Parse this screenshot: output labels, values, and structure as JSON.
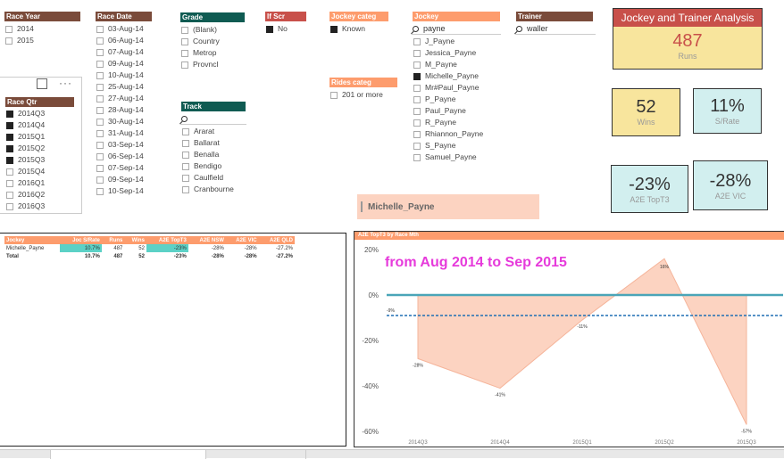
{
  "slicers": {
    "race_year": {
      "title": "Race Year",
      "items": [
        {
          "label": "2014",
          "checked": false
        },
        {
          "label": "2015",
          "checked": false
        }
      ]
    },
    "race_date": {
      "title": "Race Date",
      "items": [
        {
          "label": "03-Aug-14",
          "checked": false
        },
        {
          "label": "06-Aug-14",
          "checked": false
        },
        {
          "label": "07-Aug-14",
          "checked": false
        },
        {
          "label": "09-Aug-14",
          "checked": false
        },
        {
          "label": "10-Aug-14",
          "checked": false
        },
        {
          "label": "25-Aug-14",
          "checked": false
        },
        {
          "label": "27-Aug-14",
          "checked": false
        },
        {
          "label": "28-Aug-14",
          "checked": false
        },
        {
          "label": "30-Aug-14",
          "checked": false
        },
        {
          "label": "31-Aug-14",
          "checked": false
        },
        {
          "label": "03-Sep-14",
          "checked": false
        },
        {
          "label": "06-Sep-14",
          "checked": false
        },
        {
          "label": "07-Sep-14",
          "checked": false
        },
        {
          "label": "09-Sep-14",
          "checked": false
        },
        {
          "label": "10-Sep-14",
          "checked": false
        }
      ]
    },
    "grade": {
      "title": "Grade",
      "items": [
        {
          "label": "(Blank)",
          "checked": false
        },
        {
          "label": "Country",
          "checked": false
        },
        {
          "label": "Metrop",
          "checked": false
        },
        {
          "label": "Provncl",
          "checked": false
        }
      ]
    },
    "if_scr": {
      "title": "If Scr",
      "items": [
        {
          "label": "No",
          "checked": true
        }
      ]
    },
    "jockey_categ": {
      "title": "Jockey categ",
      "items": [
        {
          "label": "Known",
          "checked": true
        }
      ]
    },
    "rides_categ": {
      "title": "Rides categ",
      "items": [
        {
          "label": "201 or more",
          "checked": false
        }
      ]
    },
    "jockey": {
      "title": "Jockey",
      "search": "payne",
      "items": [
        {
          "label": "J_Payne",
          "checked": false
        },
        {
          "label": "Jessica_Payne",
          "checked": false
        },
        {
          "label": "M_Payne",
          "checked": false
        },
        {
          "label": "Michelle_Payne",
          "checked": true
        },
        {
          "label": "Mr#Paul_Payne",
          "checked": false
        },
        {
          "label": "P_Payne",
          "checked": false
        },
        {
          "label": "Paul_Payne",
          "checked": false
        },
        {
          "label": "R_Payne",
          "checked": false
        },
        {
          "label": "Rhiannon_Payne",
          "checked": false
        },
        {
          "label": "S_Payne",
          "checked": false
        },
        {
          "label": "Samuel_Payne",
          "checked": false
        }
      ]
    },
    "trainer": {
      "title": "Trainer",
      "search": "waller"
    },
    "track": {
      "title": "Track",
      "search": "",
      "items": [
        {
          "label": "Ararat",
          "checked": false
        },
        {
          "label": "Ballarat",
          "checked": false
        },
        {
          "label": "Benalla",
          "checked": false
        },
        {
          "label": "Bendigo",
          "checked": false
        },
        {
          "label": "Caulfield",
          "checked": false
        },
        {
          "label": "Cranbourne",
          "checked": false
        }
      ]
    },
    "race_qtr": {
      "title": "Race Qtr",
      "items": [
        {
          "label": "2014Q3",
          "checked": true
        },
        {
          "label": "2014Q4",
          "checked": true
        },
        {
          "label": "2015Q1",
          "checked": true
        },
        {
          "label": "2015Q2",
          "checked": true
        },
        {
          "label": "2015Q3",
          "checked": true
        },
        {
          "label": "2015Q4",
          "checked": false
        },
        {
          "label": "2016Q1",
          "checked": false
        },
        {
          "label": "2016Q2",
          "checked": false
        },
        {
          "label": "2016Q3",
          "checked": false
        }
      ]
    }
  },
  "header": {
    "title": "Jockey and Trainer Analysis"
  },
  "cards": {
    "runs": {
      "value": "487",
      "label": "Runs"
    },
    "wins": {
      "value": "52",
      "label": "Wins"
    },
    "srate": {
      "value": "11%",
      "label": "S/Rate"
    },
    "a2e_top3": {
      "value": "-23%",
      "label": "A2E TopT3"
    },
    "a2e_vic": {
      "value": "-28%",
      "label": "A2E VIC"
    }
  },
  "selected_jockey": "Michelle_Payne",
  "table": {
    "headers": [
      "Jockey",
      "Joc S/Rate",
      "Runs",
      "Wins",
      "A2E TopT3",
      "A2E NSW",
      "A2E VIC",
      "A2E QLD"
    ],
    "rows": [
      [
        "Michelle_Payne",
        "10.7%",
        "487",
        "52",
        "-23%",
        "-28%",
        "-28%",
        "-27.2%"
      ]
    ],
    "total": [
      "Total",
      "10.7%",
      "487",
      "52",
      "-23%",
      "-28%",
      "-28%",
      "-27.2%"
    ]
  },
  "chart_data": {
    "type": "area",
    "title": "A2E TopT3 by Race Mth",
    "annotation": "from Aug 2014 to Sep 2015",
    "categories": [
      "2014Q3",
      "2014Q4",
      "2015Q1",
      "2015Q2",
      "2015Q3"
    ],
    "series": [
      {
        "values": [
          -28,
          -41,
          -11,
          16,
          -57
        ],
        "labels": [
          "-28%",
          "-41%",
          "-11%",
          "16%",
          "-57%"
        ]
      }
    ],
    "reference_line": {
      "value": -9,
      "label": "-9%"
    },
    "ylim": [
      -60,
      20
    ],
    "yticks": [
      "20%",
      "0%",
      "-20%",
      "-40%",
      "-60%"
    ],
    "colors": {
      "area": "#fcd3c1",
      "line": "#f5b49a",
      "zero": "#4aa5b8",
      "avg": "#1f6fb4",
      "annotation": "#e63adb"
    }
  }
}
